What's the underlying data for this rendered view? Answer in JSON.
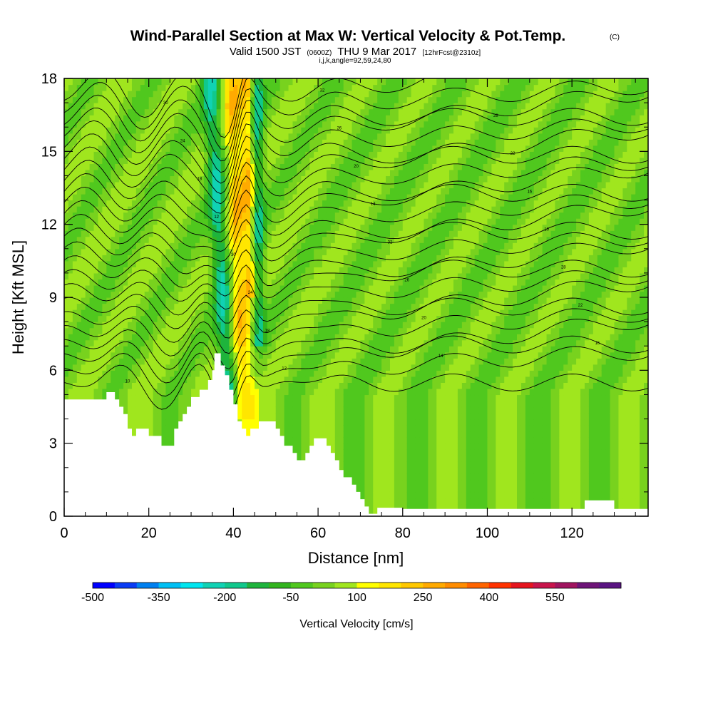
{
  "header": {
    "title_main": "Wind-Parallel Section at Max W: Vertical Velocity & Pot.Temp.",
    "title_mark": "(C)",
    "valid_prefix": "Valid 1500 JST",
    "valid_utc": "(0600Z)",
    "valid_date": "THU 9 Mar 2017",
    "forecast": "[12hrFcst@2310z]",
    "indices": "i,j,k,angle=92,59,24,80"
  },
  "colors": {
    "background": "#ffffff",
    "contour": "#000000",
    "colorbar": [
      "#0000ff",
      "#0a3cf5",
      "#0080f0",
      "#00c0f5",
      "#00e6f0",
      "#10d2b4",
      "#10c88c",
      "#1eb43c",
      "#32b41e",
      "#50c81e",
      "#78d21e",
      "#a0e61e",
      "#ffff00",
      "#ffe600",
      "#ffc800",
      "#ffaa00",
      "#ff8c00",
      "#ff6400",
      "#ff3200",
      "#e6141e",
      "#c8144b",
      "#a0145f",
      "#6e1478",
      "#5a1482"
    ]
  },
  "chart_data": {
    "type": "heatmap",
    "xlabel": "Distance [nm]",
    "ylabel": "Height [Kft MSL]",
    "xlim": [
      0,
      138
    ],
    "ylim": [
      0,
      18
    ],
    "xticks": [
      "0",
      "20",
      "40",
      "60",
      "80",
      "100",
      "120"
    ],
    "yticks": [
      "0",
      "3",
      "6",
      "9",
      "12",
      "15",
      "18"
    ],
    "colorbar": {
      "label": "Vertical Velocity [cm/s]",
      "ticks": [
        "-500",
        "-350",
        "-200",
        "-50",
        "100",
        "250",
        "400",
        "550"
      ],
      "levels": [
        -500,
        -450,
        -400,
        -350,
        -300,
        -250,
        -200,
        -150,
        -100,
        -50,
        0,
        50,
        100,
        150,
        200,
        250,
        300,
        350,
        400,
        450,
        500,
        550,
        600,
        650,
        700
      ]
    },
    "terrain": [
      [
        0,
        4.8
      ],
      [
        10,
        4.8
      ],
      [
        10,
        5.1
      ],
      [
        12,
        5.1
      ],
      [
        12,
        4.8
      ],
      [
        13,
        4.8
      ],
      [
        13,
        4.5
      ],
      [
        14,
        4.5
      ],
      [
        14,
        4.2
      ],
      [
        15,
        4.2
      ],
      [
        15,
        3.6
      ],
      [
        16,
        3.6
      ],
      [
        16,
        3.3
      ],
      [
        17,
        3.3
      ],
      [
        17,
        3.6
      ],
      [
        20,
        3.6
      ],
      [
        20,
        3.3
      ],
      [
        23,
        3.3
      ],
      [
        23,
        2.9
      ],
      [
        26,
        2.9
      ],
      [
        26,
        3.6
      ],
      [
        27,
        3.6
      ],
      [
        27,
        3.9
      ],
      [
        28,
        3.9
      ],
      [
        28,
        4.2
      ],
      [
        29,
        4.2
      ],
      [
        29,
        4.5
      ],
      [
        30,
        4.5
      ],
      [
        30,
        4.9
      ],
      [
        32,
        4.9
      ],
      [
        32,
        5.2
      ],
      [
        34,
        5.2
      ],
      [
        34,
        5.6
      ],
      [
        35,
        5.6
      ],
      [
        35,
        6.0
      ],
      [
        35.5,
        6.0
      ],
      [
        35.5,
        6.7
      ],
      [
        37,
        6.7
      ],
      [
        37,
        6.2
      ],
      [
        38,
        6.2
      ],
      [
        38,
        5.8
      ],
      [
        39,
        5.8
      ],
      [
        39,
        5.2
      ],
      [
        40,
        5.2
      ],
      [
        40,
        4.6
      ],
      [
        41,
        4.6
      ],
      [
        41,
        3.9
      ],
      [
        42,
        3.9
      ],
      [
        42,
        3.6
      ],
      [
        43,
        3.6
      ],
      [
        43,
        3.3
      ],
      [
        44,
        3.3
      ],
      [
        44,
        3.6
      ],
      [
        46,
        3.6
      ],
      [
        46,
        3.9
      ],
      [
        50,
        3.9
      ],
      [
        50,
        3.6
      ],
      [
        51,
        3.6
      ],
      [
        51,
        3.3
      ],
      [
        52,
        3.3
      ],
      [
        52,
        2.9
      ],
      [
        54,
        2.9
      ],
      [
        54,
        2.6
      ],
      [
        55,
        2.6
      ],
      [
        55,
        2.3
      ],
      [
        57,
        2.3
      ],
      [
        57,
        2.6
      ],
      [
        58,
        2.6
      ],
      [
        58,
        2.9
      ],
      [
        59,
        2.9
      ],
      [
        59,
        3.2
      ],
      [
        62,
        3.2
      ],
      [
        62,
        2.9
      ],
      [
        63,
        2.9
      ],
      [
        63,
        2.6
      ],
      [
        64,
        2.6
      ],
      [
        64,
        2.3
      ],
      [
        65,
        2.3
      ],
      [
        65,
        1.9
      ],
      [
        66,
        1.9
      ],
      [
        66,
        1.6
      ],
      [
        68,
        1.6
      ],
      [
        68,
        1.3
      ],
      [
        69,
        1.3
      ],
      [
        69,
        1.0
      ],
      [
        70,
        1.0
      ],
      [
        70,
        0.7
      ],
      [
        71,
        0.7
      ],
      [
        71,
        0.4
      ],
      [
        72,
        0.4
      ],
      [
        72,
        0.1
      ],
      [
        74,
        0.1
      ],
      [
        74,
        0.35
      ],
      [
        80,
        0.35
      ],
      [
        80,
        0.3
      ],
      [
        123,
        0.3
      ],
      [
        123,
        0.65
      ],
      [
        130,
        0.65
      ],
      [
        130,
        0.3
      ],
      [
        138,
        0.3
      ],
      [
        138,
        0
      ],
      [
        0,
        0
      ]
    ],
    "contour_label_values": [
      "10",
      "12",
      "14",
      "16",
      "18",
      "20",
      "22",
      "24",
      "26",
      "28",
      "30",
      "32"
    ]
  }
}
